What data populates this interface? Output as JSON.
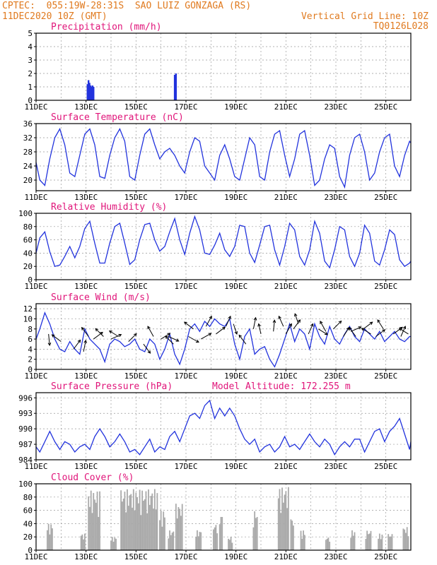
{
  "header": {
    "line1_left": "CPTEC:  055:19W-28:31S  SAO LUIZ GONZAGA (RS)",
    "line2_left": "11DEC2020 10Z (GMT)",
    "line2_right": "Vertical Grid Line: 10Z",
    "line3_right": "TQ0126L028"
  },
  "colors": {
    "header": "#e07a1f",
    "title": "#e0157a",
    "series": "#2233dd",
    "cloud": "#aaaaaa",
    "grid": "#999999"
  },
  "chart_data": [
    {
      "type": "bar",
      "title": "Precipitation (mm/h)",
      "ylim": [
        0,
        5
      ],
      "yticks": [
        0,
        1,
        2,
        3,
        4,
        5
      ],
      "xticks": [
        "11DEC",
        "13DEC",
        "15DEC",
        "17DEC",
        "19DEC",
        "21DEC",
        "23DEC",
        "25DEC"
      ],
      "x_start_day": 11,
      "values": [
        [
          13.06,
          1.2
        ],
        [
          13.1,
          1.5
        ],
        [
          13.14,
          1.3
        ],
        [
          13.18,
          1.1
        ],
        [
          13.22,
          1.0
        ],
        [
          13.26,
          1.1
        ],
        [
          13.3,
          1.0
        ],
        [
          16.55,
          1.9
        ],
        [
          16.6,
          2.0
        ]
      ]
    },
    {
      "type": "line",
      "title": "Surface Temperature (nC)",
      "ylim": [
        17,
        36
      ],
      "yticks": [
        20,
        24,
        28,
        32,
        36
      ],
      "xticks": [
        "11DEC",
        "13DEC",
        "15DEC",
        "17DEC",
        "19DEC",
        "21DEC",
        "23DEC",
        "25DEC"
      ],
      "x": [
        11.0,
        11.15,
        11.35,
        11.55,
        11.75,
        11.95,
        12.15,
        12.35,
        12.55,
        12.75,
        12.95,
        13.15,
        13.35,
        13.55,
        13.75,
        13.95,
        14.15,
        14.35,
        14.55,
        14.75,
        14.95,
        15.15,
        15.35,
        15.55,
        15.75,
        15.95,
        16.15,
        16.35,
        16.55,
        16.75,
        16.95,
        17.15,
        17.35,
        17.55,
        17.75,
        17.95,
        18.15,
        18.35,
        18.55,
        18.75,
        18.95,
        19.15,
        19.35,
        19.55,
        19.75,
        19.95,
        20.15,
        20.35,
        20.55,
        20.75,
        20.95,
        21.15,
        21.35,
        21.55,
        21.75,
        21.95,
        22.15,
        22.35,
        22.55,
        22.75,
        22.95,
        23.15,
        23.35,
        23.55,
        23.75,
        23.95,
        24.15,
        24.35,
        24.55,
        24.75,
        24.95,
        25.15,
        25.35,
        25.55,
        25.75,
        25.95,
        26.0
      ],
      "y": [
        25,
        20,
        18.5,
        26,
        32,
        34.5,
        30,
        22,
        21,
        27,
        33,
        34.5,
        30,
        21,
        20.5,
        27,
        32,
        34.5,
        31,
        21,
        20,
        27,
        33,
        34.5,
        30,
        26,
        28,
        29,
        27,
        24,
        22,
        28,
        32,
        31,
        24,
        22,
        20,
        27,
        30,
        26,
        21,
        20,
        26,
        32,
        30,
        21,
        20,
        28,
        33,
        34,
        27,
        21,
        26,
        33,
        34,
        27,
        18.5,
        20,
        26,
        30,
        29,
        21,
        18,
        27,
        32,
        33,
        28,
        20,
        22,
        28,
        32,
        33,
        24,
        21,
        27,
        31,
        30.5
      ]
    },
    {
      "type": "line",
      "title": "Relative Humidity (%)",
      "ylim": [
        0,
        100
      ],
      "yticks": [
        0,
        20,
        40,
        60,
        80,
        100
      ],
      "xticks": [
        "11DEC",
        "13DEC",
        "15DEC",
        "17DEC",
        "19DEC",
        "21DEC",
        "23DEC",
        "25DEC"
      ],
      "x": [
        11.0,
        11.15,
        11.35,
        11.55,
        11.75,
        11.95,
        12.15,
        12.35,
        12.55,
        12.75,
        12.95,
        13.15,
        13.35,
        13.55,
        13.75,
        13.95,
        14.15,
        14.35,
        14.55,
        14.75,
        14.95,
        15.15,
        15.35,
        15.55,
        15.75,
        15.95,
        16.15,
        16.35,
        16.55,
        16.75,
        16.95,
        17.15,
        17.35,
        17.55,
        17.75,
        17.95,
        18.15,
        18.35,
        18.55,
        18.75,
        18.95,
        19.15,
        19.35,
        19.55,
        19.75,
        19.95,
        20.15,
        20.35,
        20.55,
        20.75,
        20.95,
        21.15,
        21.35,
        21.55,
        21.75,
        21.95,
        22.15,
        22.35,
        22.55,
        22.75,
        22.95,
        23.15,
        23.35,
        23.55,
        23.75,
        23.95,
        24.15,
        24.35,
        24.55,
        24.75,
        24.95,
        25.15,
        25.35,
        25.55,
        25.75,
        25.95,
        26.0
      ],
      "y": [
        40,
        63,
        72,
        42,
        20,
        22,
        35,
        50,
        33,
        50,
        77,
        88,
        55,
        25,
        25,
        55,
        80,
        85,
        55,
        23,
        30,
        60,
        83,
        85,
        60,
        43,
        50,
        72,
        92,
        60,
        38,
        70,
        95,
        75,
        40,
        38,
        52,
        70,
        45,
        35,
        50,
        82,
        80,
        40,
        26,
        52,
        80,
        82,
        45,
        22,
        50,
        85,
        75,
        35,
        22,
        45,
        88,
        70,
        28,
        18,
        45,
        80,
        75,
        35,
        20,
        40,
        82,
        70,
        28,
        22,
        45,
        75,
        68,
        30,
        20,
        25,
        28
      ]
    },
    {
      "type": "line",
      "title": "Surface Wind (m/s)",
      "ylim": [
        0,
        13
      ],
      "yticks": [
        0,
        2,
        4,
        6,
        8,
        10,
        12
      ],
      "xticks": [
        "11DEC",
        "13DEC",
        "15DEC",
        "17DEC",
        "19DEC",
        "21DEC",
        "23DEC",
        "25DEC"
      ],
      "x": [
        11.0,
        11.15,
        11.35,
        11.55,
        11.75,
        11.95,
        12.15,
        12.35,
        12.55,
        12.75,
        12.95,
        13.15,
        13.35,
        13.55,
        13.75,
        13.95,
        14.15,
        14.35,
        14.55,
        14.75,
        14.95,
        15.15,
        15.35,
        15.55,
        15.75,
        15.95,
        16.15,
        16.35,
        16.55,
        16.75,
        16.95,
        17.15,
        17.35,
        17.55,
        17.75,
        17.95,
        18.15,
        18.35,
        18.55,
        18.75,
        18.95,
        19.15,
        19.35,
        19.55,
        19.75,
        19.95,
        20.15,
        20.35,
        20.55,
        20.75,
        20.95,
        21.15,
        21.35,
        21.55,
        21.75,
        21.95,
        22.15,
        22.35,
        22.55,
        22.75,
        22.95,
        23.15,
        23.35,
        23.55,
        23.75,
        23.95,
        24.15,
        24.35,
        24.55,
        24.75,
        24.95,
        25.15,
        25.35,
        25.55,
        25.75,
        25.95,
        26.0
      ],
      "y": [
        6,
        8,
        11.2,
        9,
        6,
        4,
        3.5,
        5.5,
        4,
        3,
        8,
        6,
        5,
        4,
        1.5,
        5,
        6,
        5.5,
        4.5,
        5,
        6,
        4,
        3.5,
        6,
        5,
        2,
        4,
        7,
        3,
        1,
        4,
        8,
        9,
        7.5,
        9.5,
        8.5,
        10,
        9,
        8.5,
        10,
        5,
        2,
        6.5,
        8,
        3,
        4,
        4.5,
        2,
        0.5,
        3,
        6,
        9,
        5.5,
        8,
        7,
        4,
        9,
        6.5,
        5,
        8.5,
        6,
        5,
        7,
        8.5,
        6.5,
        5.5,
        8,
        7,
        6,
        7.5,
        5.5,
        6.5,
        7.5,
        6,
        5.5,
        6.5,
        6.5
      ],
      "arrows": [
        [
          11.5,
          7,
          0.1,
          -1
        ],
        [
          12.0,
          5.5,
          -0.8,
          0.6
        ],
        [
          12.5,
          4,
          0.6,
          0.8
        ],
        [
          12.9,
          3.5,
          0.2,
          1
        ],
        [
          13.1,
          6.5,
          -0.6,
          0.8
        ],
        [
          13.3,
          6,
          0.8,
          0.6
        ],
        [
          13.7,
          6.5,
          -0.7,
          0.7
        ],
        [
          14.0,
          6,
          0.9,
          0.4
        ],
        [
          14.3,
          6.5,
          -0.8,
          0.5
        ],
        [
          14.7,
          5.5,
          0.7,
          0.7
        ],
        [
          15.3,
          5,
          0.6,
          -0.8
        ],
        [
          15.7,
          6.5,
          -0.5,
          0.9
        ],
        [
          16.0,
          6,
          0.8,
          0.5
        ],
        [
          16.3,
          6.5,
          0.9,
          -0.4
        ],
        [
          16.5,
          5,
          -0.7,
          0.7
        ],
        [
          17.1,
          6.5,
          0.9,
          -0.5
        ],
        [
          17.3,
          8,
          -0.8,
          0.6
        ],
        [
          17.6,
          6,
          0.9,
          0.5
        ],
        [
          17.8,
          8.5,
          0.5,
          0.9
        ],
        [
          18.2,
          7,
          0.8,
          0.6
        ],
        [
          18.6,
          8.5,
          0.4,
          0.9
        ],
        [
          18.9,
          9,
          0.3,
          -0.9
        ],
        [
          19.4,
          5,
          -0.6,
          0.8
        ],
        [
          19.7,
          8,
          0.2,
          1
        ],
        [
          20.0,
          7,
          -0.2,
          0.9
        ],
        [
          20.5,
          7.5,
          0.1,
          1
        ],
        [
          20.9,
          8.5,
          -0.4,
          0.9
        ],
        [
          21.0,
          7,
          0.5,
          0.9
        ],
        [
          21.3,
          8,
          0.6,
          0.8
        ],
        [
          21.5,
          9,
          -0.3,
          0.9
        ],
        [
          21.9,
          7,
          0.4,
          0.9
        ],
        [
          22.3,
          8,
          0.8,
          -0.5
        ],
        [
          22.6,
          7.5,
          -0.5,
          0.9
        ],
        [
          22.9,
          8,
          0.7,
          0.7
        ],
        [
          23.3,
          6.5,
          0.5,
          0.8
        ],
        [
          23.6,
          7.5,
          0.9,
          0.4
        ],
        [
          23.8,
          6.5,
          -0.6,
          0.8
        ],
        [
          24.1,
          8,
          0.8,
          0.6
        ],
        [
          24.4,
          7,
          -0.8,
          0.5
        ],
        [
          24.6,
          6.5,
          0.8,
          0.6
        ],
        [
          24.9,
          8,
          -0.5,
          0.8
        ],
        [
          25.3,
          7,
          0.8,
          0.6
        ],
        [
          25.6,
          6.5,
          0.4,
          0.9
        ],
        [
          25.9,
          7,
          -0.8,
          0.5
        ]
      ]
    },
    {
      "type": "line",
      "title": "Surface Pressure (hPa)",
      "annotation": "Model Altitude: 172.255 m",
      "ylim": [
        984,
        997
      ],
      "yticks": [
        984,
        987,
        990,
        993,
        996
      ],
      "xticks": [
        "11DEC",
        "13DEC",
        "15DEC",
        "17DEC",
        "19DEC",
        "21DEC",
        "23DEC",
        "25DEC"
      ],
      "x": [
        11.0,
        11.15,
        11.35,
        11.55,
        11.75,
        11.95,
        12.15,
        12.35,
        12.55,
        12.75,
        12.95,
        13.15,
        13.35,
        13.55,
        13.75,
        13.95,
        14.15,
        14.35,
        14.55,
        14.75,
        14.95,
        15.15,
        15.35,
        15.55,
        15.75,
        15.95,
        16.15,
        16.35,
        16.55,
        16.75,
        16.95,
        17.15,
        17.35,
        17.55,
        17.75,
        17.95,
        18.15,
        18.35,
        18.55,
        18.75,
        18.95,
        19.15,
        19.35,
        19.55,
        19.75,
        19.95,
        20.15,
        20.35,
        20.55,
        20.75,
        20.95,
        21.15,
        21.35,
        21.55,
        21.75,
        21.95,
        22.15,
        22.35,
        22.55,
        22.75,
        22.95,
        23.15,
        23.35,
        23.55,
        23.75,
        23.95,
        24.15,
        24.35,
        24.55,
        24.75,
        24.95,
        25.15,
        25.35,
        25.55,
        25.75,
        25.95,
        26.0
      ],
      "y": [
        986.5,
        985.5,
        987.5,
        989.5,
        987.5,
        986,
        987.5,
        987,
        985.5,
        986.5,
        987,
        986,
        988.5,
        990,
        988.5,
        986.5,
        987.5,
        989,
        987.5,
        985.5,
        986,
        985,
        986.5,
        988,
        985.5,
        986.5,
        986,
        988.5,
        989.5,
        987.5,
        990,
        992.5,
        993,
        992,
        994.5,
        995.5,
        992,
        994,
        992.5,
        994,
        992.5,
        990,
        988,
        987,
        988,
        985.5,
        986.5,
        987,
        985.5,
        986.5,
        988.5,
        986.5,
        987,
        986,
        987.5,
        989,
        987.5,
        986.5,
        988,
        987,
        985,
        986.5,
        987.5,
        986.5,
        988,
        988,
        985.5,
        987.5,
        989.5,
        990,
        987.5,
        989.5,
        990.5,
        992,
        989,
        986,
        987.5
      ]
    },
    {
      "type": "bar",
      "title": "Cloud Cover (%)",
      "ylim": [
        0,
        100
      ],
      "yticks": [
        0,
        20,
        40,
        60,
        80,
        100
      ],
      "xticks": [
        "11DEC",
        "13DEC",
        "15DEC",
        "17DEC",
        "19DEC",
        "21DEC",
        "23DEC",
        "25DEC"
      ],
      "segments": [
        [
          11.45,
          11.7,
          40
        ],
        [
          12.8,
          13.0,
          25
        ],
        [
          13.1,
          13.6,
          90
        ],
        [
          14.0,
          14.25,
          20
        ],
        [
          14.4,
          15.9,
          92
        ],
        [
          15.95,
          16.2,
          60
        ],
        [
          16.3,
          16.55,
          30
        ],
        [
          16.6,
          16.9,
          70
        ],
        [
          17.4,
          17.6,
          30
        ],
        [
          18.1,
          18.3,
          40
        ],
        [
          18.35,
          18.5,
          55
        ],
        [
          18.7,
          18.9,
          20
        ],
        [
          19.7,
          19.9,
          60
        ],
        [
          20.7,
          21.15,
          95
        ],
        [
          21.2,
          21.3,
          50
        ],
        [
          21.6,
          21.8,
          30
        ],
        [
          22.6,
          22.8,
          20
        ],
        [
          23.6,
          23.8,
          30
        ],
        [
          24.2,
          24.45,
          30
        ],
        [
          24.7,
          24.9,
          25
        ],
        [
          25.1,
          25.3,
          25
        ],
        [
          25.7,
          25.95,
          35
        ]
      ]
    }
  ]
}
